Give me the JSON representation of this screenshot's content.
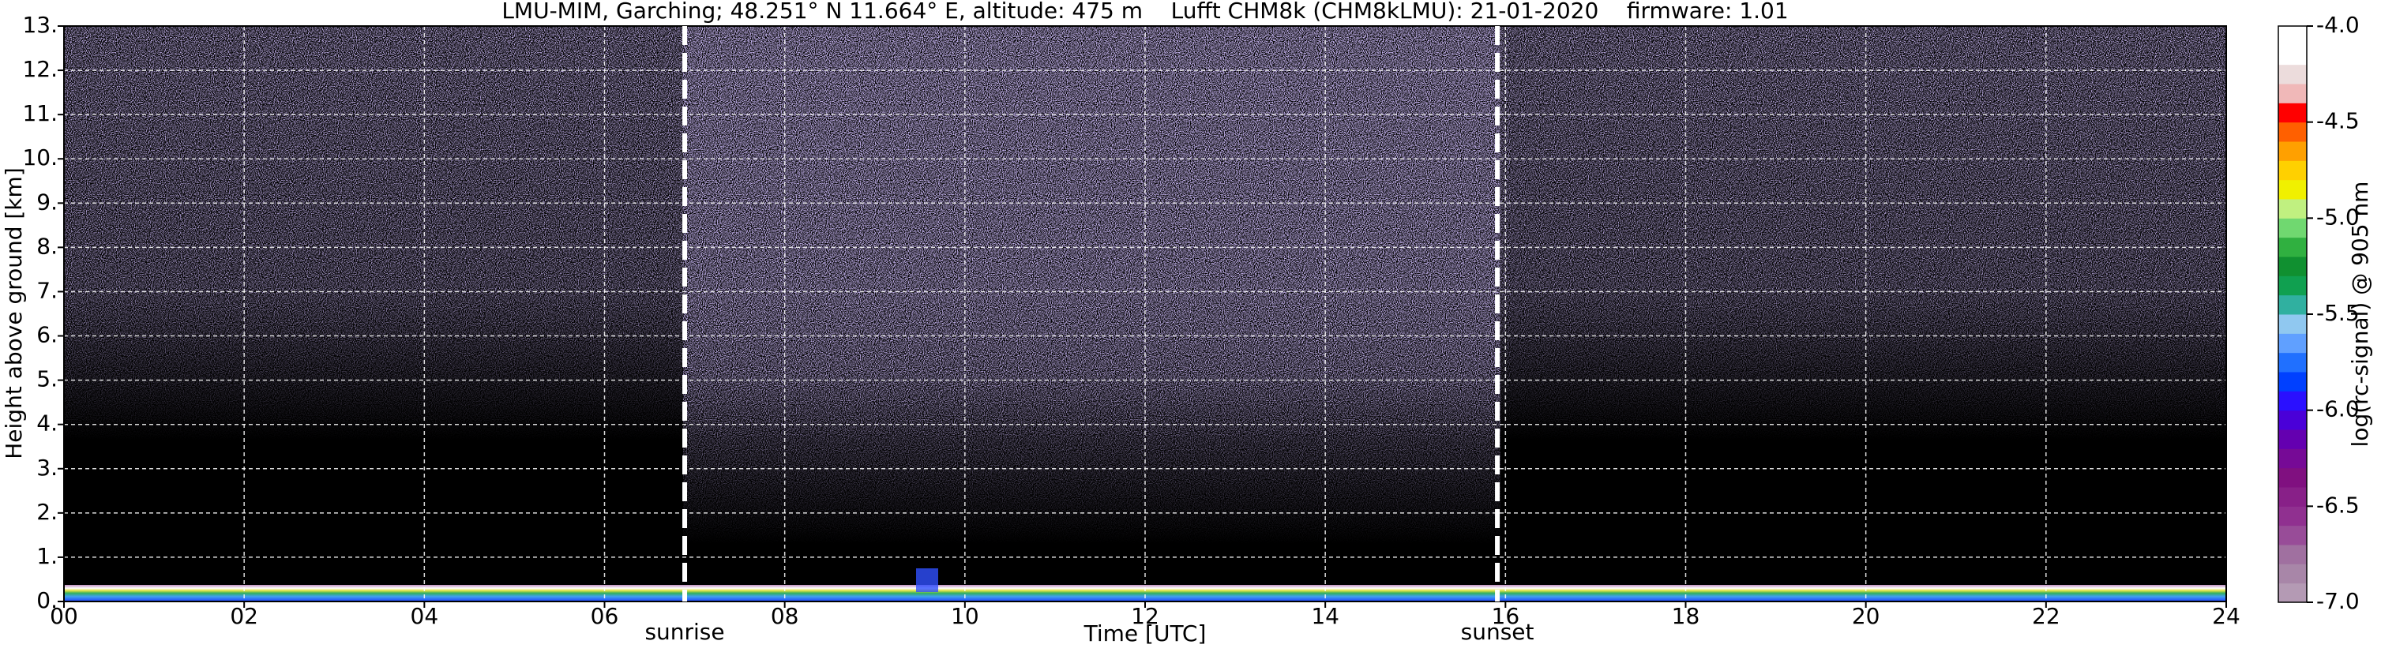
{
  "chart_data": {
    "type": "heatmap",
    "title": "LMU-MIM, Garching; 48.251° N 11.664° E, altitude: 475 m    Lufft CHM8k (CHM8kLMU): 21-01-2020    firmware: 1.01",
    "xlabel": "Time [UTC]",
    "ylabel": "Height above ground [km]",
    "xlim": [
      0,
      24
    ],
    "ylim": [
      0,
      13
    ],
    "xticks": [
      {
        "value": 0,
        "label": "00"
      },
      {
        "value": 2,
        "label": "02"
      },
      {
        "value": 4,
        "label": "04"
      },
      {
        "value": 6,
        "label": "06"
      },
      {
        "value": 8,
        "label": "08"
      },
      {
        "value": 10,
        "label": "10"
      },
      {
        "value": 12,
        "label": "12"
      },
      {
        "value": 14,
        "label": "14"
      },
      {
        "value": 16,
        "label": "16"
      },
      {
        "value": 18,
        "label": "18"
      },
      {
        "value": 20,
        "label": "20"
      },
      {
        "value": 22,
        "label": "22"
      },
      {
        "value": 24,
        "label": "24"
      }
    ],
    "yticks": [
      {
        "value": 0,
        "label": "0."
      },
      {
        "value": 1,
        "label": "1."
      },
      {
        "value": 2,
        "label": "2."
      },
      {
        "value": 3,
        "label": "3."
      },
      {
        "value": 4,
        "label": "4."
      },
      {
        "value": 5,
        "label": "5."
      },
      {
        "value": 6,
        "label": "6."
      },
      {
        "value": 7,
        "label": "7."
      },
      {
        "value": 8,
        "label": "8."
      },
      {
        "value": 9,
        "label": "9."
      },
      {
        "value": 10,
        "label": "10."
      },
      {
        "value": 11,
        "label": "11."
      },
      {
        "value": 12,
        "label": "12."
      },
      {
        "value": 13,
        "label": "13."
      }
    ],
    "grid": true,
    "annotations": [
      {
        "text": "sunrise",
        "x": 6.89
      },
      {
        "text": "sunset",
        "x": 15.91
      }
    ],
    "colorbar": {
      "label": "log(rc-signal) @ 905 nm",
      "lim": [
        -7,
        -4
      ],
      "ticks": [
        {
          "value": -7,
          "label": "-7.0"
        },
        {
          "value": -6.5,
          "label": "-6.5"
        },
        {
          "value": -6,
          "label": "-6.0"
        },
        {
          "value": -5.5,
          "label": "-5.5"
        },
        {
          "value": -5,
          "label": "-5.0"
        },
        {
          "value": -4.5,
          "label": "-4.5"
        },
        {
          "value": -4,
          "label": "-4.0"
        }
      ],
      "colors": [
        "#b49ab4",
        "#a886a8",
        "#a070a0",
        "#984c98",
        "#903090",
        "#882088",
        "#801080",
        "#760a96",
        "#6400b0",
        "#4a00d8",
        "#2a10ff",
        "#0040ff",
        "#2070ff",
        "#60a0ff",
        "#90c8f0",
        "#30b0a0",
        "#10a050",
        "#109030",
        "#30b040",
        "#70d870",
        "#c0f080",
        "#f0f000",
        "#ffd000",
        "#ffa000",
        "#ff6000",
        "#ff0000",
        "#f0b8b8",
        "#ecdcdc",
        "#ffffff",
        "#ffffff"
      ]
    }
  }
}
